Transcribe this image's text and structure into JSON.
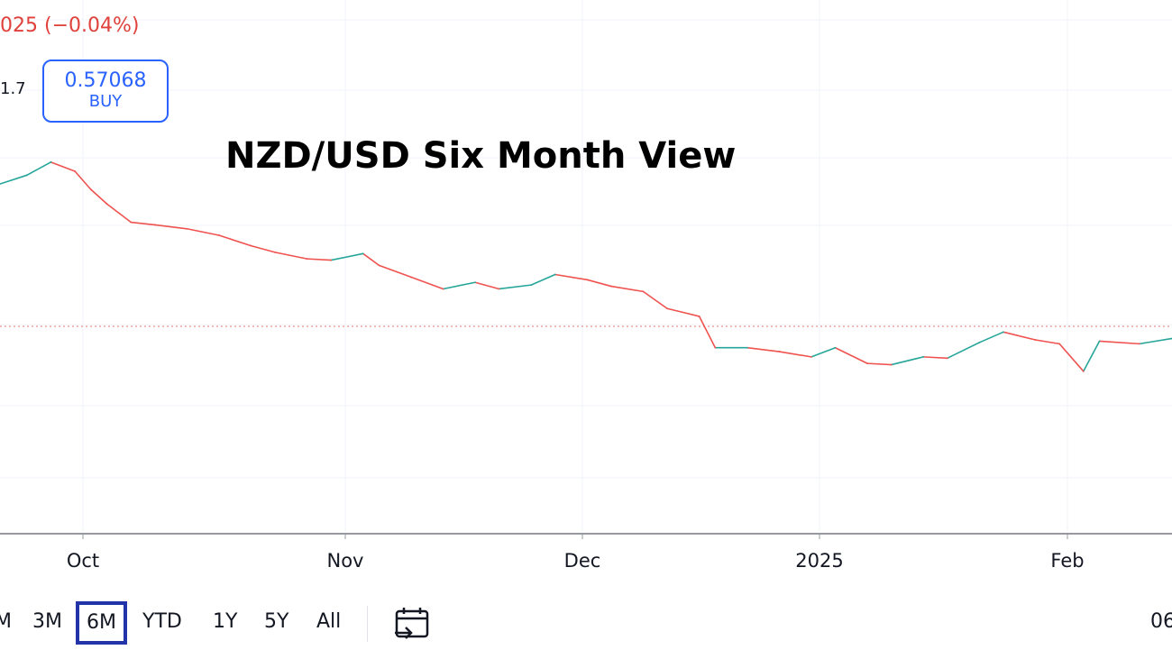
{
  "header": {
    "price_change": "025 (−0.04%)",
    "sell_price_fragment": "1.7",
    "buy_price": "0.57068",
    "buy_label": "BUY"
  },
  "chart_data": {
    "type": "line",
    "title": "NZD/USD Six Month View",
    "xlabel": "",
    "ylabel": "",
    "x_tick_labels": [
      "Oct",
      "Nov",
      "Dec",
      "2025",
      "Feb"
    ],
    "grid": true,
    "current_price_line": true,
    "series": [
      {
        "x": [
          "2024-09-20",
          "2024-09-24",
          "2024-09-27",
          "2024-09-30",
          "2024-10-02",
          "2024-10-04",
          "2024-10-07",
          "2024-10-10",
          "2024-10-14",
          "2024-10-18",
          "2024-10-22",
          "2024-10-25",
          "2024-10-29",
          "2024-11-01",
          "2024-11-05",
          "2024-11-07",
          "2024-11-11",
          "2024-11-15",
          "2024-11-19",
          "2024-11-22",
          "2024-11-26",
          "2024-11-29",
          "2024-12-03",
          "2024-12-06",
          "2024-12-10",
          "2024-12-13",
          "2024-12-17",
          "2024-12-19",
          "2024-12-23",
          "2024-12-27",
          "2024-12-31",
          "2025-01-03",
          "2025-01-07",
          "2025-01-10",
          "2025-01-14",
          "2025-01-17",
          "2025-01-21",
          "2025-01-24",
          "2025-01-28",
          "2025-01-31",
          "2025-02-03",
          "2025-02-05",
          "2025-02-10",
          "2025-02-14"
        ],
        "y": [
          0.6245,
          0.6285,
          0.6335,
          0.63,
          0.623,
          0.6175,
          0.6105,
          0.6095,
          0.608,
          0.6055,
          0.6015,
          0.599,
          0.5965,
          0.596,
          0.5985,
          0.594,
          0.5895,
          0.585,
          0.5875,
          0.585,
          0.5865,
          0.5905,
          0.5885,
          0.586,
          0.584,
          0.5775,
          0.5745,
          0.5625,
          0.5625,
          0.561,
          0.559,
          0.5625,
          0.5565,
          0.556,
          0.559,
          0.5585,
          0.5645,
          0.5685,
          0.5655,
          0.564,
          0.5535,
          0.565,
          0.564,
          0.566
        ]
      }
    ]
  },
  "range_buttons": [
    {
      "label": "M",
      "active": false
    },
    {
      "label": "3M",
      "active": false
    },
    {
      "label": "6M",
      "active": true
    },
    {
      "label": "YTD",
      "active": false
    },
    {
      "label": "1Y",
      "active": false
    },
    {
      "label": "5Y",
      "active": false
    },
    {
      "label": "All",
      "active": false
    }
  ],
  "right_clipped_text": "06",
  "colors": {
    "up": "#26a69a",
    "down": "#ef5350",
    "grid": "#f0f3fa",
    "price_line": "#e57373",
    "buy": "#2962ff",
    "active_range_border": "#2333a8"
  },
  "icons": {
    "calendar": "calendar-goto-icon"
  }
}
